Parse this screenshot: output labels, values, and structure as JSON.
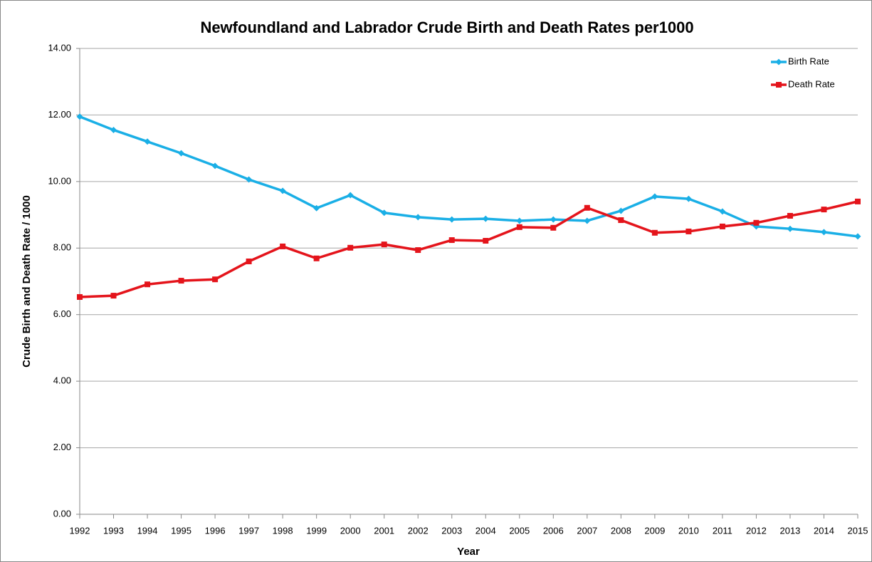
{
  "chart_data": {
    "type": "line",
    "title": "Newfoundland and Labrador Crude Birth and Death Rates per1000",
    "x_label": "Year",
    "y_label": "Crude Birth and Death Rate / 1000",
    "categories": [
      "1992",
      "1993",
      "1994",
      "1995",
      "1996",
      "1997",
      "1998",
      "1999",
      "2000",
      "2001",
      "2002",
      "2003",
      "2004",
      "2005",
      "2006",
      "2007",
      "2008",
      "2009",
      "2010",
      "2011",
      "2012",
      "2013",
      "2014",
      "2015"
    ],
    "series": [
      {
        "name": "Birth Rate",
        "color": "#1aafe6",
        "marker": "diamond",
        "values": [
          11.95,
          11.55,
          11.2,
          10.85,
          10.47,
          10.06,
          9.72,
          9.2,
          9.59,
          9.06,
          8.93,
          8.86,
          8.88,
          8.82,
          8.86,
          8.82,
          9.12,
          9.55,
          9.48,
          9.1,
          8.65,
          8.58,
          8.48,
          8.35
        ]
      },
      {
        "name": "Death Rate",
        "color": "#e4141b",
        "marker": "square",
        "values": [
          6.53,
          6.57,
          6.91,
          7.02,
          7.06,
          7.6,
          8.05,
          7.69,
          8.01,
          8.11,
          7.94,
          8.24,
          8.22,
          8.63,
          8.61,
          9.21,
          8.84,
          8.46,
          8.5,
          8.65,
          8.76,
          8.97,
          9.16,
          9.4
        ]
      }
    ],
    "ylim": [
      0,
      14
    ],
    "yticks": [
      {
        "value": 0,
        "label": "0.00"
      },
      {
        "value": 2,
        "label": "2.00"
      },
      {
        "value": 4,
        "label": "4.00"
      },
      {
        "value": 6,
        "label": "6.00"
      },
      {
        "value": 8,
        "label": "8.00"
      },
      {
        "value": 10,
        "label": "10.00"
      },
      {
        "value": 12,
        "label": "12.00"
      },
      {
        "value": 14,
        "label": "14.00"
      }
    ],
    "grid": true,
    "legend": "top-right"
  }
}
